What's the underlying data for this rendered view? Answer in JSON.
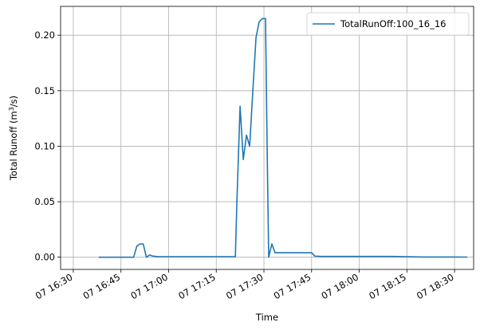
{
  "chart_data": {
    "type": "line",
    "title": "",
    "xlabel": "Time",
    "ylabel_prefix": "Total Runoff (m",
    "ylabel_sup": "3",
    "ylabel_suffix": "/s)",
    "legend_position": "top-right",
    "grid": true,
    "x_unit": "minutes after 07 16:30",
    "xlim": [
      -4,
      126
    ],
    "ylim": [
      -0.011,
      0.226
    ],
    "x_ticks": [
      {
        "value": 0,
        "label": "07 16:30"
      },
      {
        "value": 15,
        "label": "07 16:45"
      },
      {
        "value": 30,
        "label": "07 17:00"
      },
      {
        "value": 45,
        "label": "07 17:15"
      },
      {
        "value": 60,
        "label": "07 17:30"
      },
      {
        "value": 75,
        "label": "07 17:45"
      },
      {
        "value": 90,
        "label": "07 18:00"
      },
      {
        "value": 105,
        "label": "07 18:15"
      },
      {
        "value": 120,
        "label": "07 18:30"
      }
    ],
    "y_ticks": [
      {
        "value": 0.0,
        "label": "0.00"
      },
      {
        "value": 0.05,
        "label": "0.05"
      },
      {
        "value": 0.1,
        "label": "0.10"
      },
      {
        "value": 0.15,
        "label": "0.15"
      },
      {
        "value": 0.2,
        "label": "0.20"
      }
    ],
    "series": [
      {
        "name": "TotalRunOff:100_16_16",
        "color": "#1f77b4",
        "points": [
          [
            8,
            0.0
          ],
          [
            12,
            0.0
          ],
          [
            16,
            0.0
          ],
          [
            18,
            0.0
          ],
          [
            19,
            0.0
          ],
          [
            20,
            0.01
          ],
          [
            21,
            0.012
          ],
          [
            22,
            0.012
          ],
          [
            23,
            0.0
          ],
          [
            24,
            0.002
          ],
          [
            25,
            0.001
          ],
          [
            27,
            0.0005
          ],
          [
            30,
            0.0005
          ],
          [
            40,
            0.0005
          ],
          [
            50,
            0.0005
          ],
          [
            51,
            0.0005
          ],
          [
            51.5,
            0.05
          ],
          [
            52.5,
            0.136
          ],
          [
            53.5,
            0.088
          ],
          [
            54.5,
            0.11
          ],
          [
            55.5,
            0.1
          ],
          [
            56.5,
            0.15
          ],
          [
            57.5,
            0.198
          ],
          [
            58.5,
            0.212
          ],
          [
            59.5,
            0.215
          ],
          [
            60.5,
            0.215
          ],
          [
            61,
            0.1
          ],
          [
            61.5,
            0.0
          ],
          [
            62.5,
            0.012
          ],
          [
            63.5,
            0.004
          ],
          [
            65,
            0.004
          ],
          [
            70,
            0.004
          ],
          [
            75,
            0.004
          ],
          [
            76,
            0.001
          ],
          [
            78,
            0.0007
          ],
          [
            90,
            0.0007
          ],
          [
            100,
            0.0007
          ],
          [
            105,
            0.0004
          ],
          [
            110,
            0.0002
          ],
          [
            120,
            0.0002
          ],
          [
            124,
            0.0001
          ]
        ]
      }
    ]
  }
}
